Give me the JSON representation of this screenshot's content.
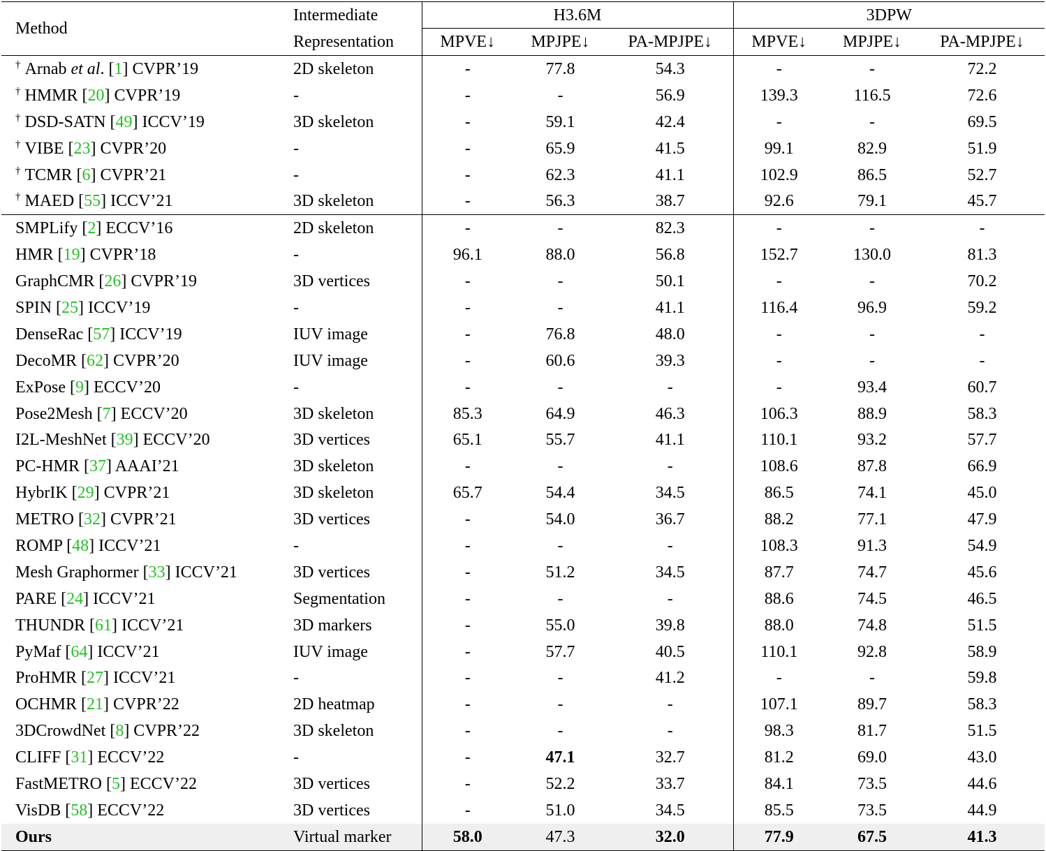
{
  "header": {
    "method": "Method",
    "rep_line1": "Intermediate",
    "rep_line2": "Representation",
    "group_h36m": "H3.6M",
    "group_3dpw": "3DPW",
    "metrics": [
      "MPVE↓",
      "MPJPE↓",
      "PA-MPJPE↓",
      "MPVE↓",
      "MPJPE↓",
      "PA-MPJPE↓"
    ]
  },
  "dagger": "†",
  "video_rows": [
    {
      "pre": "Arnab ",
      "etal": "et al",
      "dot": ". [",
      "cite": "1",
      "venue": "] CVPR’19",
      "rep": "2D skeleton",
      "vals": [
        "-",
        "77.8",
        "54.3",
        "-",
        "-",
        "72.2"
      ]
    },
    {
      "pre": "HMMR [",
      "cite": "20",
      "venue": "] CVPR’19",
      "rep": "-",
      "vals": [
        "-",
        "-",
        "56.9",
        "139.3",
        "116.5",
        "72.6"
      ]
    },
    {
      "pre": "DSD-SATN [",
      "cite": "49",
      "venue": "] ICCV’19",
      "rep": "3D skeleton",
      "vals": [
        "-",
        "59.1",
        "42.4",
        "-",
        "-",
        "69.5"
      ]
    },
    {
      "pre": "VIBE [",
      "cite": "23",
      "venue": "] CVPR’20",
      "rep": "-",
      "vals": [
        "-",
        "65.9",
        "41.5",
        "99.1",
        "82.9",
        "51.9"
      ]
    },
    {
      "pre": "TCMR [",
      "cite": "6",
      "venue": "] CVPR’21",
      "rep": "-",
      "vals": [
        "-",
        "62.3",
        "41.1",
        "102.9",
        "86.5",
        "52.7"
      ]
    },
    {
      "pre": "MAED [",
      "cite": "55",
      "venue": "] ICCV’21",
      "rep": "3D skeleton",
      "vals": [
        "-",
        "56.3",
        "38.7",
        "92.6",
        "79.1",
        "45.7"
      ]
    }
  ],
  "image_rows": [
    {
      "pre": "SMPLify [",
      "cite": "2",
      "venue": "] ECCV’16",
      "rep": "2D skeleton",
      "vals": [
        "-",
        "-",
        "82.3",
        "-",
        "-",
        "-"
      ]
    },
    {
      "pre": "HMR [",
      "cite": "19",
      "venue": "] CVPR’18",
      "rep": "-",
      "vals": [
        "96.1",
        "88.0",
        "56.8",
        "152.7",
        "130.0",
        "81.3"
      ]
    },
    {
      "pre": "GraphCMR [",
      "cite": "26",
      "venue": "] CVPR’19",
      "rep": "3D vertices",
      "vals": [
        "-",
        "-",
        "50.1",
        "-",
        "-",
        "70.2"
      ]
    },
    {
      "pre": "SPIN [",
      "cite": "25",
      "venue": "] ICCV’19",
      "rep": "-",
      "vals": [
        "-",
        "-",
        "41.1",
        "116.4",
        "96.9",
        "59.2"
      ]
    },
    {
      "pre": "DenseRac [",
      "cite": "57",
      "venue": "] ICCV’19",
      "rep": "IUV image",
      "vals": [
        "-",
        "76.8",
        "48.0",
        "-",
        "-",
        "-"
      ]
    },
    {
      "pre": "DecoMR [",
      "cite": "62",
      "venue": "] CVPR’20",
      "rep": "IUV image",
      "vals": [
        "-",
        "60.6",
        "39.3",
        "-",
        "-",
        "-"
      ]
    },
    {
      "pre": "ExPose [",
      "cite": "9",
      "venue": "] ECCV’20",
      "rep": "-",
      "vals": [
        "-",
        "-",
        "-",
        "-",
        "93.4",
        "60.7"
      ]
    },
    {
      "pre": "Pose2Mesh [",
      "cite": "7",
      "venue": "] ECCV’20",
      "rep": "3D skeleton",
      "vals": [
        "85.3",
        "64.9",
        "46.3",
        "106.3",
        "88.9",
        "58.3"
      ]
    },
    {
      "pre": "I2L-MeshNet [",
      "cite": "39",
      "venue": "] ECCV’20",
      "rep": "3D vertices",
      "vals": [
        "65.1",
        "55.7",
        "41.1",
        "110.1",
        "93.2",
        "57.7"
      ]
    },
    {
      "pre": "PC-HMR [",
      "cite": "37",
      "venue": "] AAAI’21",
      "rep": "3D skeleton",
      "vals": [
        "-",
        "-",
        "-",
        "108.6",
        "87.8",
        "66.9"
      ]
    },
    {
      "pre": "HybrIK [",
      "cite": "29",
      "venue": "] CVPR’21",
      "rep": "3D skeleton",
      "vals": [
        "65.7",
        "54.4",
        "34.5",
        "86.5",
        "74.1",
        "45.0"
      ]
    },
    {
      "pre": "METRO [",
      "cite": "32",
      "venue": "] CVPR’21",
      "rep": "3D vertices",
      "vals": [
        "-",
        "54.0",
        "36.7",
        "88.2",
        "77.1",
        "47.9"
      ]
    },
    {
      "pre": "ROMP [",
      "cite": "48",
      "venue": "] ICCV’21",
      "rep": "-",
      "vals": [
        "-",
        "-",
        "-",
        "108.3",
        "91.3",
        "54.9"
      ]
    },
    {
      "pre": "Mesh Graphormer [",
      "cite": "33",
      "venue": "] ICCV’21",
      "rep": "3D vertices",
      "vals": [
        "-",
        "51.2",
        "34.5",
        "87.7",
        "74.7",
        "45.6"
      ]
    },
    {
      "pre": "PARE [",
      "cite": "24",
      "venue": "] ICCV’21",
      "rep": "Segmentation",
      "vals": [
        "-",
        "-",
        "-",
        "88.6",
        "74.5",
        "46.5"
      ]
    },
    {
      "pre": "THUNDR [",
      "cite": "61",
      "venue": "] ICCV’21",
      "rep": "3D markers",
      "vals": [
        "-",
        "55.0",
        "39.8",
        "88.0",
        "74.8",
        "51.5"
      ]
    },
    {
      "pre": "PyMaf [",
      "cite": "64",
      "venue": "] ICCV’21",
      "rep": "IUV image",
      "vals": [
        "-",
        "57.7",
        "40.5",
        "110.1",
        "92.8",
        "58.9"
      ]
    },
    {
      "pre": "ProHMR [",
      "cite": "27",
      "venue": "] ICCV’21",
      "rep": "-",
      "vals": [
        "-",
        "-",
        "41.2",
        "-",
        "-",
        "59.8"
      ]
    },
    {
      "pre": "OCHMR [",
      "cite": "21",
      "venue": "] CVPR’22",
      "rep": "2D heatmap",
      "vals": [
        "-",
        "-",
        "-",
        "107.1",
        "89.7",
        "58.3"
      ]
    },
    {
      "pre": "3DCrowdNet [",
      "cite": "8",
      "venue": "] CVPR’22",
      "rep": "3D skeleton",
      "vals": [
        "-",
        "-",
        "-",
        "98.3",
        "81.7",
        "51.5"
      ]
    },
    {
      "pre": "CLIFF [",
      "cite": "31",
      "venue": "] ECCV’22",
      "rep": "-",
      "vals": [
        "-",
        "47.1",
        "32.7",
        "81.2",
        "69.0",
        "43.0"
      ],
      "bold": [
        1
      ]
    },
    {
      "pre": "FastMETRO [",
      "cite": "5",
      "venue": "] ECCV’22",
      "rep": "3D vertices",
      "vals": [
        "-",
        "52.2",
        "33.7",
        "84.1",
        "73.5",
        "44.6"
      ]
    },
    {
      "pre": "VisDB [",
      "cite": "58",
      "venue": "] ECCV’22",
      "rep": "3D vertices",
      "vals": [
        "-",
        "51.0",
        "34.5",
        "85.5",
        "73.5",
        "44.9"
      ]
    }
  ],
  "ours": {
    "name": "Ours",
    "rep": "Virtual marker",
    "vals": [
      "58.0",
      "47.3",
      "32.0",
      "77.9",
      "67.5",
      "41.3"
    ],
    "bold": [
      0,
      2,
      3,
      4,
      5
    ]
  }
}
